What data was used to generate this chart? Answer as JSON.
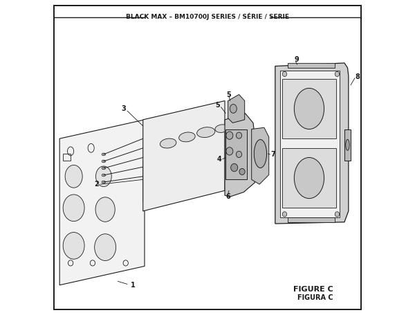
{
  "title": "BLACK MAX – BM10700J SERIES / SÉRIE / SERIE",
  "figure_label": "FIGURE C",
  "figura_label": "FIGURA C",
  "bg_color": "#ffffff",
  "border_color": "#1a1a1a",
  "line_color": "#1a1a1a",
  "text_color": "#1a1a1a",
  "fig_width": 6.0,
  "fig_height": 4.55,
  "dpi": 100
}
